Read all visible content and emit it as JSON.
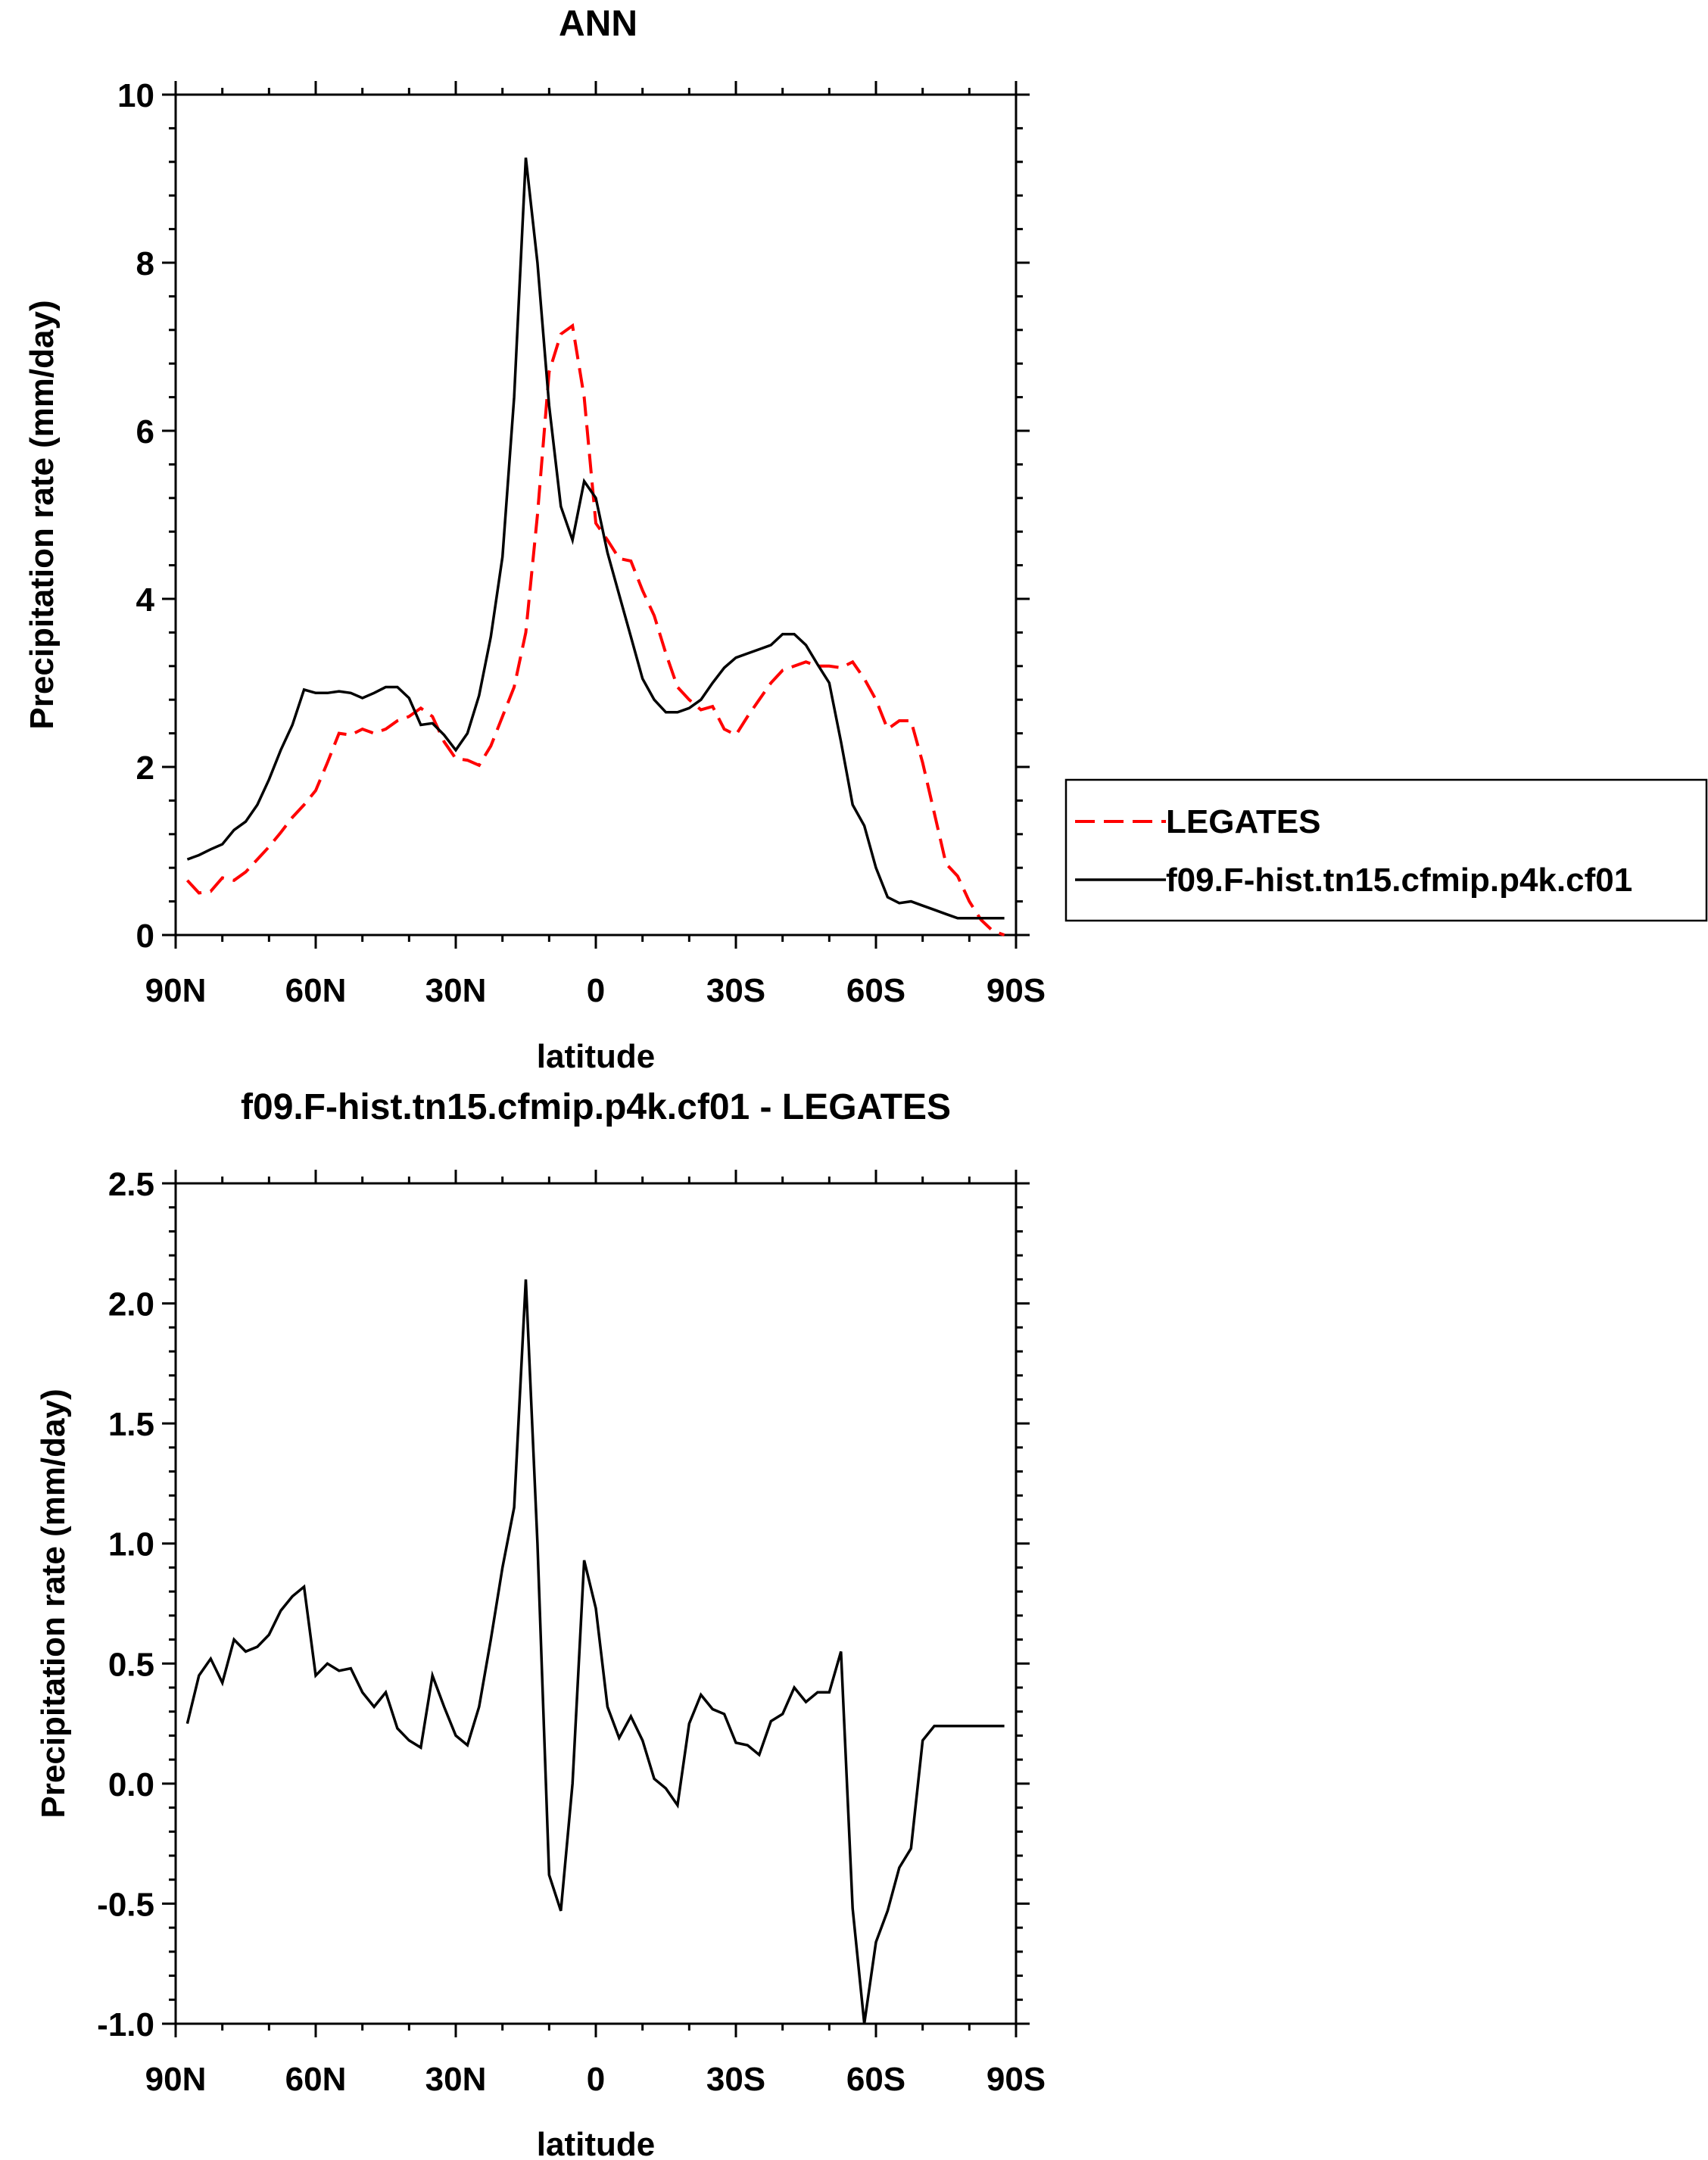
{
  "chart_data": [
    {
      "type": "line",
      "title": "ANN",
      "xlabel": "latitude",
      "ylabel": "Precipitation rate (mm/day)",
      "xlim": [
        -90,
        90
      ],
      "ylim": [
        0,
        10
      ],
      "xticks": [
        -90,
        -60,
        -30,
        0,
        30,
        60,
        90
      ],
      "xtick_labels": [
        "90N",
        "60N",
        "30N",
        "0",
        "30S",
        "60S",
        "90S"
      ],
      "yticks": [
        0,
        2,
        4,
        6,
        8,
        10
      ],
      "ytick_labels": [
        "0",
        "2",
        "4",
        "6",
        "8",
        "10"
      ],
      "grid": false,
      "legend": "right",
      "series": [
        {
          "name": "LEGATES",
          "color": "#ff0000",
          "style": "dashed",
          "x": [
            -87.5,
            -85,
            -82.5,
            -80,
            -77.5,
            -75,
            -72.5,
            -70,
            -67.5,
            -65,
            -62.5,
            -60,
            -57.5,
            -55,
            -52.5,
            -50,
            -47.5,
            -45,
            -42.5,
            -40,
            -37.5,
            -35,
            -32.5,
            -30,
            -27.5,
            -25,
            -22.5,
            -20,
            -17.5,
            -15,
            -12.5,
            -10,
            -7.5,
            -5,
            -2.5,
            0,
            2.5,
            5,
            7.5,
            10,
            12.5,
            15,
            17.5,
            20,
            22.5,
            25,
            27.5,
            30,
            32.5,
            35,
            37.5,
            40,
            42.5,
            45,
            47.5,
            50,
            52.5,
            55,
            57.5,
            60,
            62.5,
            65,
            67.5,
            70,
            72.5,
            75,
            77.5,
            80,
            82.5,
            85,
            87.5
          ],
          "y": [
            0.65,
            0.5,
            0.52,
            0.68,
            0.65,
            0.75,
            0.9,
            1.05,
            1.22,
            1.4,
            1.55,
            1.72,
            2.05,
            2.4,
            2.38,
            2.45,
            2.4,
            2.45,
            2.55,
            2.6,
            2.7,
            2.6,
            2.3,
            2.1,
            2.08,
            2.02,
            2.25,
            2.6,
            2.95,
            3.6,
            5.0,
            6.7,
            7.15,
            7.25,
            6.4,
            4.9,
            4.7,
            4.48,
            4.45,
            4.1,
            3.8,
            3.35,
            2.95,
            2.8,
            2.68,
            2.72,
            2.45,
            2.38,
            2.6,
            2.8,
            3.0,
            3.15,
            3.2,
            3.25,
            3.2,
            3.2,
            3.18,
            3.25,
            3.05,
            2.8,
            2.45,
            2.55,
            2.55,
            2.05,
            1.45,
            0.85,
            0.7,
            0.4,
            0.18,
            0.05,
            0.0
          ]
        },
        {
          "name": "f09.F-hist.tn15.cfmip.p4k.cf01",
          "color": "#000000",
          "style": "solid",
          "x": [
            -87.5,
            -85,
            -82.5,
            -80,
            -77.5,
            -75,
            -72.5,
            -70,
            -67.5,
            -65,
            -62.5,
            -60,
            -57.5,
            -55,
            -52.5,
            -50,
            -47.5,
            -45,
            -42.5,
            -40,
            -37.5,
            -35,
            -32.5,
            -30,
            -27.5,
            -25,
            -22.5,
            -20,
            -17.5,
            -15,
            -12.5,
            -10,
            -7.5,
            -5,
            -2.5,
            0,
            2.5,
            5,
            7.5,
            10,
            12.5,
            15,
            17.5,
            20,
            22.5,
            25,
            27.5,
            30,
            32.5,
            35,
            37.5,
            40,
            42.5,
            45,
            47.5,
            50,
            52.5,
            55,
            57.5,
            60,
            62.5,
            65,
            67.5,
            70,
            72.5,
            75,
            77.5,
            80,
            82.5,
            85,
            87.5
          ],
          "y": [
            0.9,
            0.95,
            1.02,
            1.08,
            1.25,
            1.35,
            1.55,
            1.85,
            2.2,
            2.5,
            2.92,
            2.88,
            2.88,
            2.9,
            2.88,
            2.82,
            2.88,
            2.95,
            2.95,
            2.82,
            2.5,
            2.52,
            2.38,
            2.2,
            2.4,
            2.85,
            3.55,
            4.5,
            6.4,
            9.25,
            8.0,
            6.3,
            5.1,
            4.7,
            5.4,
            5.2,
            4.55,
            4.05,
            3.55,
            3.05,
            2.8,
            2.65,
            2.65,
            2.7,
            2.8,
            3.0,
            3.18,
            3.3,
            3.35,
            3.4,
            3.45,
            3.58,
            3.58,
            3.45,
            3.22,
            3.0,
            2.3,
            1.55,
            1.3,
            0.8,
            0.45,
            0.38,
            0.4,
            0.35,
            0.3,
            0.25,
            0.2,
            0.2,
            0.2,
            0.2,
            0.2
          ]
        }
      ]
    },
    {
      "type": "line",
      "title": "f09.F-hist.tn15.cfmip.p4k.cf01 - LEGATES",
      "xlabel": "latitude",
      "ylabel": "Precipitation rate (mm/day)",
      "xlim": [
        -90,
        90
      ],
      "ylim": [
        -1.0,
        2.5
      ],
      "xticks": [
        -90,
        -60,
        -30,
        0,
        30,
        60,
        90
      ],
      "xtick_labels": [
        "90N",
        "60N",
        "30N",
        "0",
        "30S",
        "60S",
        "90S"
      ],
      "yticks": [
        -1.0,
        -0.5,
        0.0,
        0.5,
        1.0,
        1.5,
        2.0,
        2.5
      ],
      "ytick_labels": [
        "-1.0",
        "-0.5",
        "0.0",
        "0.5",
        "1.0",
        "1.5",
        "2.0",
        "2.5"
      ],
      "grid": false,
      "series": [
        {
          "color": "#000000",
          "style": "solid",
          "x": [
            -87.5,
            -85,
            -82.5,
            -80,
            -77.5,
            -75,
            -72.5,
            -70,
            -67.5,
            -65,
            -62.5,
            -60,
            -57.5,
            -55,
            -52.5,
            -50,
            -47.5,
            -45,
            -42.5,
            -40,
            -37.5,
            -35,
            -32.5,
            -30,
            -27.5,
            -25,
            -22.5,
            -20,
            -17.5,
            -15,
            -12.5,
            -10,
            -7.5,
            -5,
            -2.5,
            0,
            2.5,
            5,
            7.5,
            10,
            12.5,
            15,
            17.5,
            20,
            22.5,
            25,
            27.5,
            30,
            32.5,
            35,
            37.5,
            40,
            42.5,
            45,
            47.5,
            50,
            52.5,
            55,
            57.5,
            60,
            62.5,
            65,
            67.5,
            70,
            72.5,
            75,
            77.5,
            80,
            82.5,
            85,
            87.5
          ],
          "y": [
            0.25,
            0.45,
            0.52,
            0.42,
            0.6,
            0.55,
            0.57,
            0.62,
            0.72,
            0.78,
            0.82,
            0.45,
            0.5,
            0.47,
            0.48,
            0.38,
            0.32,
            0.38,
            0.23,
            0.18,
            0.15,
            0.45,
            0.32,
            0.2,
            0.16,
            0.32,
            0.6,
            0.9,
            1.15,
            2.1,
            1.0,
            -0.38,
            -0.53,
            0.0,
            0.93,
            0.73,
            0.32,
            0.19,
            0.28,
            0.18,
            0.02,
            -0.02,
            -0.09,
            0.25,
            0.37,
            0.31,
            0.29,
            0.17,
            0.16,
            0.12,
            0.26,
            0.29,
            0.4,
            0.34,
            0.38,
            0.38,
            0.55,
            -0.52,
            -1.0,
            -0.66,
            -0.53,
            -0.35,
            -0.27,
            0.18,
            0.24,
            0.24,
            0.24,
            0.24,
            0.24,
            0.24,
            0.24
          ]
        }
      ]
    }
  ]
}
